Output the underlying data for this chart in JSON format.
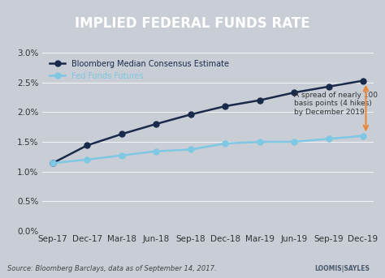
{
  "title": "IMPLIED FEDERAL FUNDS RATE",
  "title_bg_color": "#4a5a6e",
  "plot_bg_color": "#c8cdd6",
  "outer_bg_color": "#c8cdd6",
  "x_labels": [
    "Sep-17",
    "Dec-17",
    "Mar-18",
    "Jun-18",
    "Sep-18",
    "Dec-18",
    "Mar-19",
    "Jun-19",
    "Sep-19",
    "Dec-19"
  ],
  "bloomberg_values": [
    1.14,
    1.44,
    1.63,
    1.8,
    1.96,
    2.1,
    2.2,
    2.33,
    2.43,
    2.53
  ],
  "futures_values": [
    1.14,
    1.2,
    1.27,
    1.34,
    1.37,
    1.47,
    1.5,
    1.5,
    1.55,
    1.6
  ],
  "bloomberg_color": "#1a2a4a",
  "futures_color": "#7ec8e3",
  "bloomberg_label": "Bloomberg Median Consensus Estimate",
  "futures_label": "Fed Funds Futures",
  "annotation_text": "A spread of nearly 100\nbasis points (4 hikes)\nby December 2019",
  "annotation_color": "#e8883a",
  "source_text": "Source: Bloomberg Barclays, data as of September 14, 2017.",
  "line_width": 1.8,
  "marker_size": 5
}
